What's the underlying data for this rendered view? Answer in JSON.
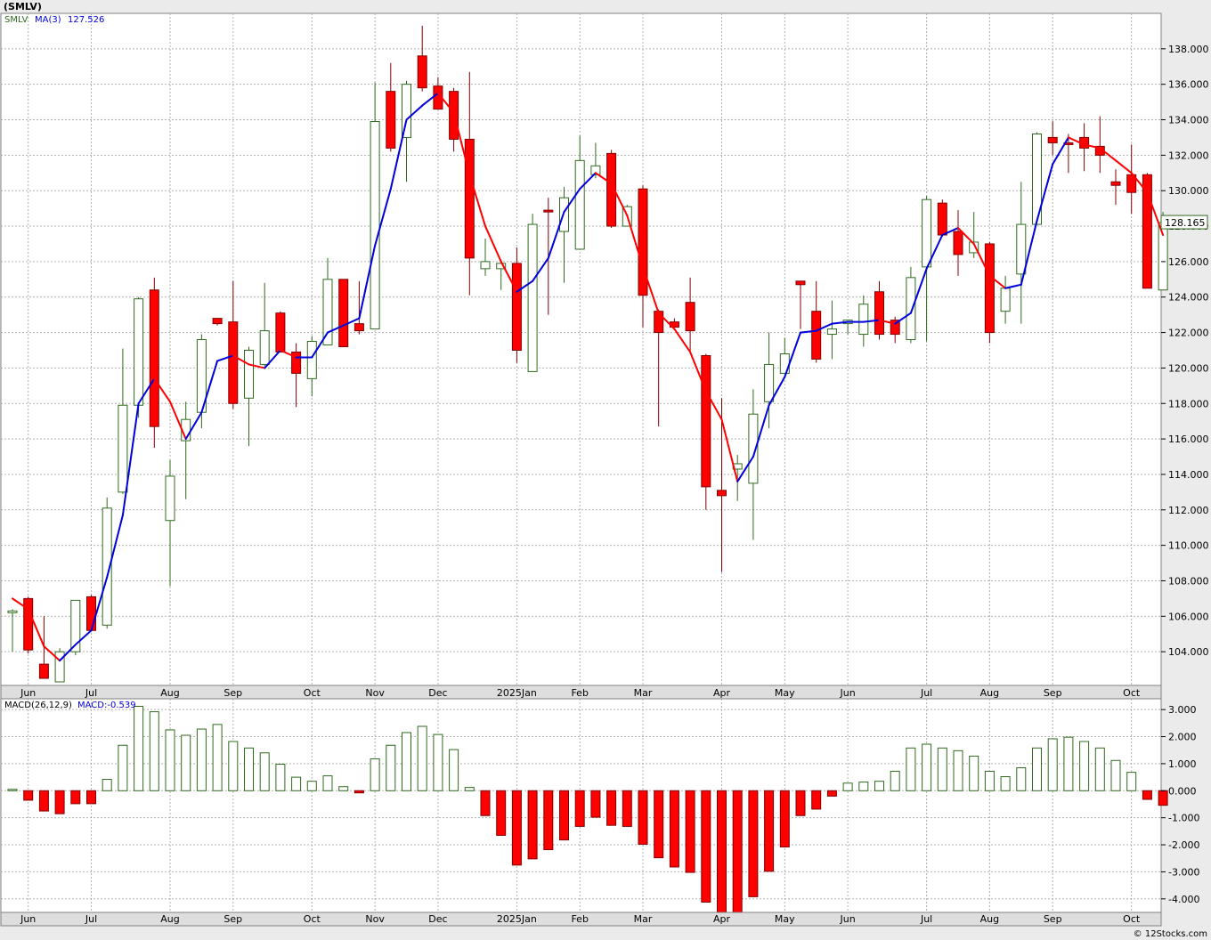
{
  "header": {
    "title": "(SMLV)",
    "watermark": "© 12Stocks.com"
  },
  "price_panel": {
    "legend_symbol": "SMLV",
    "legend_ma": "MA(3)",
    "legend_ma_value": "127.526",
    "last_price_label": "128.165"
  },
  "macd_panel": {
    "legend_label": "MACD(26,12,9)",
    "legend_value": "MACD:-0.539"
  },
  "colors": {
    "up_candle": "#2f6b1f",
    "down_candle": "#ff0000",
    "ma_rising": "#0000dd",
    "ma_falling": "#ff0000",
    "grid": "#b0b0b0"
  },
  "chart_data": [
    {
      "type": "candlestick",
      "title": "(SMLV)",
      "frequency": "weekly",
      "ylim": [
        102.1,
        140
      ],
      "y_ticks": [
        "104.000",
        "106.000",
        "108.000",
        "110.000",
        "112.000",
        "114.000",
        "116.000",
        "118.000",
        "120.000",
        "122.000",
        "124.000",
        "126.000",
        "128.000",
        "130.000",
        "132.000",
        "134.000",
        "136.000",
        "138.000"
      ],
      "x_month_labels": [
        {
          "label": "Jun",
          "week": 1
        },
        {
          "label": "Jul",
          "week": 5
        },
        {
          "label": "Aug",
          "week": 10
        },
        {
          "label": "Sep",
          "week": 14
        },
        {
          "label": "Oct",
          "week": 19
        },
        {
          "label": "Nov",
          "week": 23
        },
        {
          "label": "Dec",
          "week": 27
        },
        {
          "label": "2025Jan",
          "week": 32
        },
        {
          "label": "Feb",
          "week": 36
        },
        {
          "label": "Mar",
          "week": 40
        },
        {
          "label": "Apr",
          "week": 45
        },
        {
          "label": "May",
          "week": 49
        },
        {
          "label": "Jun",
          "week": 53
        },
        {
          "label": "Jul",
          "week": 58
        },
        {
          "label": "Aug",
          "week": 62
        },
        {
          "label": "Sep",
          "week": 66
        },
        {
          "label": "Oct",
          "week": 71
        }
      ],
      "candles": [
        {
          "o": 106.2,
          "h": 106.4,
          "l": 104.0,
          "c": 106.3
        },
        {
          "o": 107.0,
          "h": 107.1,
          "l": 103.9,
          "c": 104.1
        },
        {
          "o": 103.3,
          "h": 106.0,
          "l": 102.5,
          "c": 102.5
        },
        {
          "o": 102.3,
          "h": 104.2,
          "l": 102.3,
          "c": 104.0
        },
        {
          "o": 104.0,
          "h": 106.9,
          "l": 103.8,
          "c": 106.9
        },
        {
          "o": 107.1,
          "h": 107.2,
          "l": 105.2,
          "c": 105.2
        },
        {
          "o": 105.5,
          "h": 112.7,
          "l": 105.3,
          "c": 112.1
        },
        {
          "o": 113.0,
          "h": 121.1,
          "l": 112.9,
          "c": 117.9
        },
        {
          "o": 117.9,
          "h": 124.0,
          "l": 117.2,
          "c": 123.9
        },
        {
          "o": 124.4,
          "h": 125.1,
          "l": 115.5,
          "c": 116.7
        },
        {
          "o": 111.4,
          "h": 114.8,
          "l": 107.7,
          "c": 113.9
        },
        {
          "o": 115.9,
          "h": 118.1,
          "l": 112.6,
          "c": 117.1
        },
        {
          "o": 117.5,
          "h": 121.9,
          "l": 116.6,
          "c": 121.6
        },
        {
          "o": 122.8,
          "h": 122.8,
          "l": 122.4,
          "c": 122.5
        },
        {
          "o": 122.6,
          "h": 124.9,
          "l": 117.7,
          "c": 118.0
        },
        {
          "o": 118.3,
          "h": 121.2,
          "l": 115.6,
          "c": 121.0
        },
        {
          "o": 120.2,
          "h": 124.8,
          "l": 120.1,
          "c": 122.1
        },
        {
          "o": 123.1,
          "h": 123.2,
          "l": 120.9,
          "c": 120.9
        },
        {
          "o": 120.9,
          "h": 121.4,
          "l": 117.8,
          "c": 119.7
        },
        {
          "o": 119.4,
          "h": 121.8,
          "l": 118.4,
          "c": 121.5
        },
        {
          "o": 121.3,
          "h": 126.2,
          "l": 121.3,
          "c": 125.0
        },
        {
          "o": 125.0,
          "h": 125.0,
          "l": 121.2,
          "c": 121.2
        },
        {
          "o": 122.5,
          "h": 124.9,
          "l": 121.9,
          "c": 122.1
        },
        {
          "o": 122.2,
          "h": 136.1,
          "l": 122.2,
          "c": 133.9
        },
        {
          "o": 135.6,
          "h": 137.2,
          "l": 132.2,
          "c": 132.4
        },
        {
          "o": 133.0,
          "h": 136.2,
          "l": 130.5,
          "c": 136.0
        },
        {
          "o": 137.6,
          "h": 139.3,
          "l": 135.6,
          "c": 135.8
        },
        {
          "o": 135.9,
          "h": 136.4,
          "l": 134.6,
          "c": 134.6
        },
        {
          "o": 135.6,
          "h": 135.8,
          "l": 132.2,
          "c": 132.9
        },
        {
          "o": 132.9,
          "h": 136.7,
          "l": 124.1,
          "c": 126.2
        },
        {
          "o": 125.6,
          "h": 127.3,
          "l": 125.2,
          "c": 126.0
        },
        {
          "o": 125.6,
          "h": 126.1,
          "l": 124.4,
          "c": 125.9
        },
        {
          "o": 125.9,
          "h": 126.8,
          "l": 120.3,
          "c": 121.0
        },
        {
          "o": 119.8,
          "h": 128.7,
          "l": 119.8,
          "c": 128.1
        },
        {
          "o": 128.9,
          "h": 129.6,
          "l": 123.0,
          "c": 128.8
        },
        {
          "o": 127.7,
          "h": 130.2,
          "l": 124.8,
          "c": 129.6
        },
        {
          "o": 126.7,
          "h": 133.1,
          "l": 126.7,
          "c": 131.7
        },
        {
          "o": 130.9,
          "h": 132.7,
          "l": 130.7,
          "c": 131.4
        },
        {
          "o": 132.1,
          "h": 132.3,
          "l": 127.9,
          "c": 128.0
        },
        {
          "o": 128.0,
          "h": 129.2,
          "l": 128.0,
          "c": 129.1
        },
        {
          "o": 130.1,
          "h": 130.3,
          "l": 122.3,
          "c": 124.1
        },
        {
          "o": 123.2,
          "h": 123.3,
          "l": 116.7,
          "c": 122.0
        },
        {
          "o": 122.6,
          "h": 122.8,
          "l": 122.3,
          "c": 122.3
        },
        {
          "o": 123.7,
          "h": 125.1,
          "l": 120.9,
          "c": 122.1
        },
        {
          "o": 120.7,
          "h": 120.8,
          "l": 112.0,
          "c": 113.3
        },
        {
          "o": 113.1,
          "h": 118.3,
          "l": 108.5,
          "c": 112.8
        },
        {
          "o": 114.3,
          "h": 115.1,
          "l": 112.5,
          "c": 114.6
        },
        {
          "o": 113.5,
          "h": 118.8,
          "l": 110.3,
          "c": 117.4
        },
        {
          "o": 118.1,
          "h": 122.0,
          "l": 116.6,
          "c": 120.2
        },
        {
          "o": 119.7,
          "h": 121.7,
          "l": 119.7,
          "c": 120.8
        },
        {
          "o": 124.9,
          "h": 124.9,
          "l": 122.2,
          "c": 124.7
        },
        {
          "o": 123.2,
          "h": 124.9,
          "l": 120.3,
          "c": 120.5
        },
        {
          "o": 121.9,
          "h": 123.8,
          "l": 120.5,
          "c": 122.2
        },
        {
          "o": 122.5,
          "h": 122.7,
          "l": 121.9,
          "c": 122.7
        },
        {
          "o": 121.9,
          "h": 124.1,
          "l": 121.2,
          "c": 123.6
        },
        {
          "o": 124.3,
          "h": 124.9,
          "l": 121.6,
          "c": 121.9
        },
        {
          "o": 122.7,
          "h": 122.9,
          "l": 121.4,
          "c": 121.9
        },
        {
          "o": 121.6,
          "h": 125.7,
          "l": 121.4,
          "c": 125.1
        },
        {
          "o": 125.7,
          "h": 129.7,
          "l": 121.5,
          "c": 129.5
        },
        {
          "o": 129.3,
          "h": 129.5,
          "l": 127.4,
          "c": 127.5
        },
        {
          "o": 127.7,
          "h": 128.9,
          "l": 125.2,
          "c": 126.4
        },
        {
          "o": 126.5,
          "h": 128.8,
          "l": 126.2,
          "c": 127.1
        },
        {
          "o": 127.0,
          "h": 127.1,
          "l": 121.4,
          "c": 122.0
        },
        {
          "o": 123.2,
          "h": 125.2,
          "l": 122.5,
          "c": 124.5
        },
        {
          "o": 125.3,
          "h": 130.5,
          "l": 122.5,
          "c": 128.1
        },
        {
          "o": 128.1,
          "h": 133.3,
          "l": 128.1,
          "c": 133.2
        },
        {
          "o": 133.0,
          "h": 133.9,
          "l": 132.0,
          "c": 132.7
        },
        {
          "o": 132.7,
          "h": 133.2,
          "l": 131.0,
          "c": 132.6
        },
        {
          "o": 133.0,
          "h": 133.8,
          "l": 131.1,
          "c": 132.4
        },
        {
          "o": 132.5,
          "h": 134.2,
          "l": 131.0,
          "c": 132.0
        },
        {
          "o": 130.5,
          "h": 131.2,
          "l": 129.2,
          "c": 130.3
        },
        {
          "o": 130.9,
          "h": 132.6,
          "l": 128.7,
          "c": 129.9
        },
        {
          "o": 130.9,
          "h": 131.0,
          "l": 124.5,
          "c": 124.5
        },
        {
          "o": 124.4,
          "h": 128.8,
          "l": 124.4,
          "c": 128.2
        }
      ],
      "ma3": [
        107.0,
        106.4,
        104.3,
        103.5,
        104.4,
        105.2,
        108.2,
        111.7,
        118.0,
        119.4,
        118.1,
        116.0,
        117.5,
        120.4,
        120.7,
        120.2,
        120.0,
        121.0,
        120.6,
        120.6,
        122.0,
        122.4,
        122.8,
        126.9,
        130.1,
        134.0,
        134.8,
        135.5,
        134.4,
        130.9,
        128.0,
        126.0,
        124.3,
        124.9,
        126.2,
        128.8,
        130.1,
        131.0,
        130.4,
        128.6,
        125.7,
        123.1,
        122.2,
        120.9,
        118.7,
        117.1,
        113.6,
        115.0,
        117.9,
        119.5,
        122.0,
        122.1,
        122.5,
        122.6,
        122.6,
        122.7,
        122.5,
        123.1,
        125.6,
        127.5,
        127.9,
        127.0,
        125.2,
        124.5,
        124.7,
        128.3,
        131.5,
        133.0,
        132.6,
        132.4,
        131.7,
        131.0,
        129.9,
        127.5
      ],
      "ma3_line_starts_at_week": 1
    },
    {
      "type": "bar",
      "title": "MACD(26,12,9)",
      "ylim": [
        -4.5,
        3.4
      ],
      "y_ticks": [
        "3.000",
        "2.000",
        "1.000",
        "0.000",
        "-1.000",
        "-2.000",
        "-3.000",
        "-4.000"
      ],
      "values": [
        0.05,
        -0.35,
        -0.75,
        -0.85,
        -0.48,
        -0.48,
        0.42,
        1.68,
        3.12,
        2.92,
        2.25,
        2.05,
        2.28,
        2.45,
        1.82,
        1.58,
        1.4,
        0.98,
        0.5,
        0.35,
        0.55,
        0.15,
        -0.08,
        1.18,
        1.68,
        2.15,
        2.38,
        2.08,
        1.52,
        0.12,
        -0.92,
        -1.65,
        -2.75,
        -2.52,
        -2.18,
        -1.82,
        -1.32,
        -0.98,
        -1.28,
        -1.32,
        -1.98,
        -2.48,
        -2.82,
        -3.02,
        -4.12,
        -4.55,
        -4.52,
        -3.92,
        -2.98,
        -2.08,
        -0.92,
        -0.68,
        -0.2,
        0.28,
        0.32,
        0.35,
        0.72,
        1.58,
        1.72,
        1.58,
        1.48,
        1.28,
        0.72,
        0.52,
        0.85,
        1.58,
        1.92,
        1.98,
        1.82,
        1.58,
        1.12,
        0.68,
        -0.32,
        -0.539
      ]
    }
  ]
}
